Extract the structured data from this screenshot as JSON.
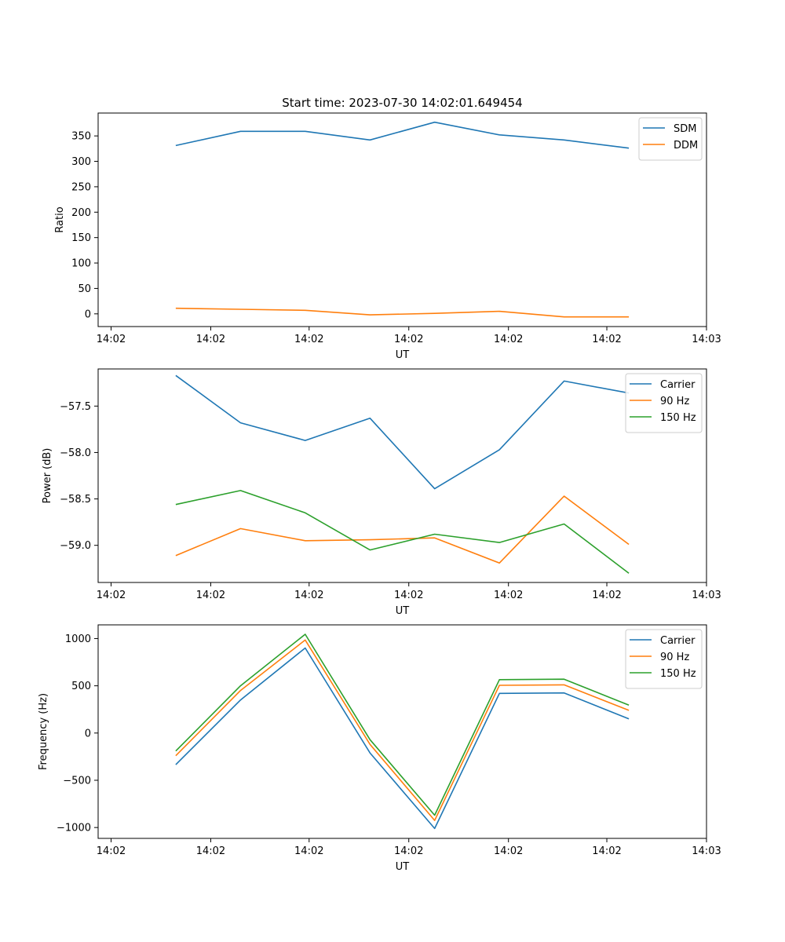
{
  "title": "Start time: 2023-07-30 14:02:01.649454",
  "colors": {
    "c0": "#1f77b4",
    "c1": "#ff7f0e",
    "c2": "#2ca02c",
    "axis": "#000000",
    "legend_border": "#cccccc"
  },
  "chart_data": [
    {
      "type": "line",
      "title": "Start time: 2023-07-30 14:02:01.649454",
      "xlabel": "UT",
      "ylabel": "Ratio",
      "x": [
        0.5,
        1.0,
        1.5,
        2.0,
        2.5,
        3.0,
        3.5,
        4.0
      ],
      "xlim": [
        -0.1,
        4.6
      ],
      "xticks": [
        0,
        0.77,
        1.53,
        2.3,
        3.07,
        3.83,
        4.6
      ],
      "xtick_labels": [
        "14:02",
        "14:02",
        "14:02",
        "14:02",
        "14:02",
        "14:02",
        "14:03"
      ],
      "ylim": [
        -25,
        395
      ],
      "yticks": [
        0,
        50,
        100,
        150,
        200,
        250,
        300,
        350
      ],
      "ytick_labels": [
        "0",
        "50",
        "100",
        "150",
        "200",
        "250",
        "300",
        "350"
      ],
      "legend_position": "upper-right",
      "series": [
        {
          "name": "SDM",
          "color": "#1f77b4",
          "values": [
            331,
            359,
            359,
            342,
            377,
            352,
            342,
            326
          ]
        },
        {
          "name": "DDM",
          "color": "#ff7f0e",
          "values": [
            11,
            9,
            7,
            -2,
            1,
            5,
            -6,
            -6
          ]
        }
      ]
    },
    {
      "type": "line",
      "title": "",
      "xlabel": "UT",
      "ylabel": "Power (dB)",
      "x": [
        0.5,
        1.0,
        1.5,
        2.0,
        2.5,
        3.0,
        3.5,
        4.0
      ],
      "xlim": [
        -0.1,
        4.6
      ],
      "xticks": [
        0,
        0.77,
        1.53,
        2.3,
        3.07,
        3.83,
        4.6
      ],
      "xtick_labels": [
        "14:02",
        "14:02",
        "14:02",
        "14:02",
        "14:02",
        "14:02",
        "14:03"
      ],
      "ylim": [
        -59.4,
        -57.1
      ],
      "yticks": [
        -59.0,
        -58.5,
        -58.0,
        -57.5
      ],
      "ytick_labels": [
        "−59.0",
        "−58.5",
        "−58.0",
        "−57.5"
      ],
      "legend_position": "upper-right",
      "series": [
        {
          "name": "Carrier",
          "color": "#1f77b4",
          "values": [
            -57.17,
            -57.68,
            -57.87,
            -57.63,
            -58.39,
            -57.97,
            -57.23,
            -57.36
          ]
        },
        {
          "name": "90 Hz",
          "color": "#ff7f0e",
          "values": [
            -59.11,
            -58.82,
            -58.95,
            -58.94,
            -58.92,
            -59.19,
            -58.47,
            -58.99
          ]
        },
        {
          "name": "150 Hz",
          "color": "#2ca02c",
          "values": [
            -58.56,
            -58.41,
            -58.65,
            -59.05,
            -58.88,
            -58.97,
            -58.77,
            -59.3
          ]
        }
      ]
    },
    {
      "type": "line",
      "title": "",
      "xlabel": "UT",
      "ylabel": "Frequency (Hz)",
      "x": [
        0.5,
        1.0,
        1.5,
        2.0,
        2.5,
        3.0,
        3.5,
        4.0
      ],
      "xlim": [
        -0.1,
        4.6
      ],
      "xticks": [
        0,
        0.77,
        1.53,
        2.3,
        3.07,
        3.83,
        4.6
      ],
      "xtick_labels": [
        "14:02",
        "14:02",
        "14:02",
        "14:02",
        "14:02",
        "14:02",
        "14:03"
      ],
      "ylim": [
        -1115,
        1145
      ],
      "yticks": [
        -1000,
        -500,
        0,
        500,
        1000
      ],
      "ytick_labels": [
        "−1000",
        "−500",
        "0",
        "500",
        "1000"
      ],
      "legend_position": "upper-right",
      "series": [
        {
          "name": "Carrier",
          "color": "#1f77b4",
          "values": [
            -335,
            350,
            900,
            -210,
            -1010,
            420,
            425,
            150
          ]
        },
        {
          "name": "90 Hz",
          "color": "#ff7f0e",
          "values": [
            -240,
            450,
            985,
            -120,
            -925,
            505,
            510,
            240
          ]
        },
        {
          "name": "150 Hz",
          "color": "#2ca02c",
          "values": [
            -190,
            500,
            1045,
            -70,
            -870,
            565,
            570,
            295
          ]
        }
      ]
    }
  ]
}
